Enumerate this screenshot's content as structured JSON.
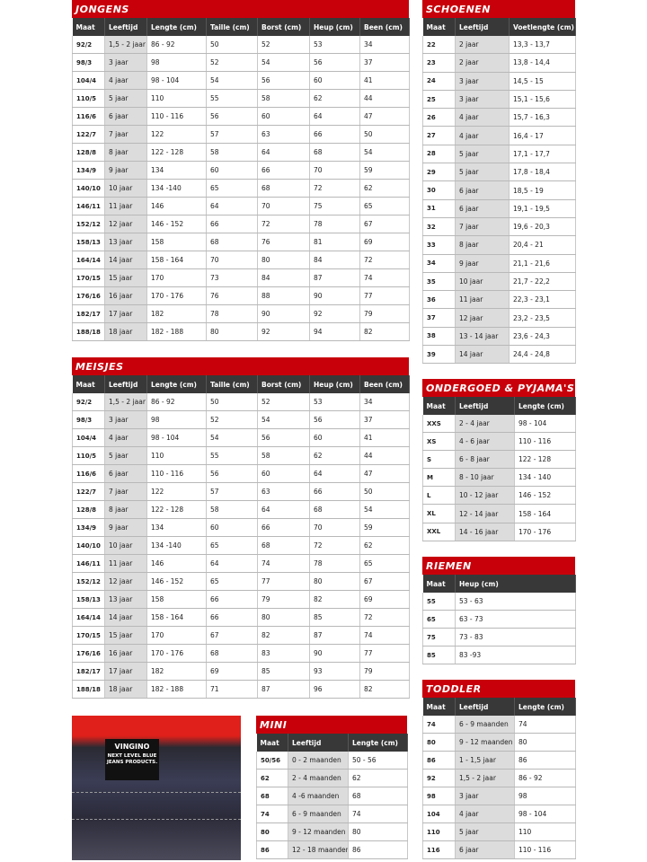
{
  "colors": {
    "header_red": "#c8000a",
    "column_header": "#383838",
    "age_column": "#dcdcdc"
  },
  "tables": {
    "jongens": {
      "title": "JONGENS",
      "columns": [
        "Maat",
        "Leeftijd",
        "Lengte (cm)",
        "Taille (cm)",
        "Borst (cm)",
        "Heup (cm)",
        "Been (cm)"
      ],
      "rows": [
        [
          "92/2",
          "1,5 - 2 jaar",
          "86 - 92",
          "50",
          "52",
          "53",
          "34"
        ],
        [
          "98/3",
          "3 jaar",
          "98",
          "52",
          "54",
          "56",
          "37"
        ],
        [
          "104/4",
          "4 jaar",
          "98 - 104",
          "54",
          "56",
          "60",
          "41"
        ],
        [
          "110/5",
          "5 jaar",
          "110",
          "55",
          "58",
          "62",
          "44"
        ],
        [
          "116/6",
          "6 jaar",
          "110 - 116",
          "56",
          "60",
          "64",
          "47"
        ],
        [
          "122/7",
          "7 jaar",
          "122",
          "57",
          "63",
          "66",
          "50"
        ],
        [
          "128/8",
          "8 jaar",
          "122 - 128",
          "58",
          "64",
          "68",
          "54"
        ],
        [
          "134/9",
          "9 jaar",
          "134",
          "60",
          "66",
          "70",
          "59"
        ],
        [
          "140/10",
          "10 jaar",
          "134 -140",
          "65",
          "68",
          "72",
          "62"
        ],
        [
          "146/11",
          "11 jaar",
          "146",
          "64",
          "70",
          "75",
          "65"
        ],
        [
          "152/12",
          "12 jaar",
          "146 - 152",
          "66",
          "72",
          "78",
          "67"
        ],
        [
          "158/13",
          "13 jaar",
          "158",
          "68",
          "76",
          "81",
          "69"
        ],
        [
          "164/14",
          "14 jaar",
          "158 - 164",
          "70",
          "80",
          "84",
          "72"
        ],
        [
          "170/15",
          "15 jaar",
          "170",
          "73",
          "84",
          "87",
          "74"
        ],
        [
          "176/16",
          "16 jaar",
          "170 - 176",
          "76",
          "88",
          "90",
          "77"
        ],
        [
          "182/17",
          "17 jaar",
          "182",
          "78",
          "90",
          "92",
          "79"
        ],
        [
          "188/18",
          "18 jaar",
          "182 - 188",
          "80",
          "92",
          "94",
          "82"
        ]
      ]
    },
    "meisjes": {
      "title": "MEISJES",
      "columns": [
        "Maat",
        "Leeftijd",
        "Lengte (cm)",
        "Taille (cm)",
        "Borst (cm)",
        "Heup (cm)",
        "Been (cm)"
      ],
      "rows": [
        [
          "92/2",
          "1,5 - 2 jaar",
          "86 - 92",
          "50",
          "52",
          "53",
          "34"
        ],
        [
          "98/3",
          "3 jaar",
          "98",
          "52",
          "54",
          "56",
          "37"
        ],
        [
          "104/4",
          "4 jaar",
          "98 - 104",
          "54",
          "56",
          "60",
          "41"
        ],
        [
          "110/5",
          "5 jaar",
          "110",
          "55",
          "58",
          "62",
          "44"
        ],
        [
          "116/6",
          "6 jaar",
          "110 - 116",
          "56",
          "60",
          "64",
          "47"
        ],
        [
          "122/7",
          "7 jaar",
          "122",
          "57",
          "63",
          "66",
          "50"
        ],
        [
          "128/8",
          "8 jaar",
          "122 - 128",
          "58",
          "64",
          "68",
          "54"
        ],
        [
          "134/9",
          "9 jaar",
          "134",
          "60",
          "66",
          "70",
          "59"
        ],
        [
          "140/10",
          "10 jaar",
          "134 -140",
          "65",
          "68",
          "72",
          "62"
        ],
        [
          "146/11",
          "11 jaar",
          "146",
          "64",
          "74",
          "78",
          "65"
        ],
        [
          "152/12",
          "12 jaar",
          "146 - 152",
          "65",
          "77",
          "80",
          "67"
        ],
        [
          "158/13",
          "13 jaar",
          "158",
          "66",
          "79",
          "82",
          "69"
        ],
        [
          "164/14",
          "14 jaar",
          "158 - 164",
          "66",
          "80",
          "85",
          "72"
        ],
        [
          "170/15",
          "15 jaar",
          "170",
          "67",
          "82",
          "87",
          "74"
        ],
        [
          "176/16",
          "16 jaar",
          "170 - 176",
          "68",
          "83",
          "90",
          "77"
        ],
        [
          "182/17",
          "17 jaar",
          "182",
          "69",
          "85",
          "93",
          "79"
        ],
        [
          "188/18",
          "18 jaar",
          "182 - 188",
          "71",
          "87",
          "96",
          "82"
        ]
      ]
    },
    "schoenen": {
      "title": "SCHOENEN",
      "columns": [
        "Maat",
        "Leeftijd",
        "Voetlengte (cm)"
      ],
      "rows": [
        [
          "22",
          "2 jaar",
          "13,3 - 13,7"
        ],
        [
          "23",
          "2 jaar",
          "13,8 - 14,4"
        ],
        [
          "24",
          "3 jaar",
          "14,5 - 15"
        ],
        [
          "25",
          "3 jaar",
          "15,1 - 15,6"
        ],
        [
          "26",
          "4 jaar",
          "15,7 - 16,3"
        ],
        [
          "27",
          "4 jaar",
          "16,4 - 17"
        ],
        [
          "28",
          "5 jaar",
          "17,1 - 17,7"
        ],
        [
          "29",
          "5 jaar",
          "17,8 - 18,4"
        ],
        [
          "30",
          "6 jaar",
          "18,5 - 19"
        ],
        [
          "31",
          "6 jaar",
          "19,1 - 19,5"
        ],
        [
          "32",
          "7 jaar",
          "19,6 - 20,3"
        ],
        [
          "33",
          "8 jaar",
          "20,4 - 21"
        ],
        [
          "34",
          "9 jaar",
          "21,1 - 21,6"
        ],
        [
          "35",
          "10 jaar",
          "21,7 - 22,2"
        ],
        [
          "36",
          "11 jaar",
          "22,3 - 23,1"
        ],
        [
          "37",
          "12 jaar",
          "23,2 - 23,5"
        ],
        [
          "38",
          "13 - 14 jaar",
          "23,6 - 24,3"
        ],
        [
          "39",
          "14 jaar",
          "24,4 - 24,8"
        ]
      ]
    },
    "ondergoed": {
      "title": "ONDERGOED & PYJAMA'S",
      "columns": [
        "Maat",
        "Leeftijd",
        "Lengte (cm)"
      ],
      "rows": [
        [
          "XXS",
          "2 - 4 jaar",
          "98 - 104"
        ],
        [
          "XS",
          "4 - 6 jaar",
          "110 - 116"
        ],
        [
          "S",
          "6 - 8 jaar",
          "122 - 128"
        ],
        [
          "M",
          "8 - 10 jaar",
          "134 - 140"
        ],
        [
          "L",
          "10 - 12 jaar",
          "146 - 152"
        ],
        [
          "XL",
          "12 - 14 jaar",
          "158 - 164"
        ],
        [
          "XXL",
          "14 - 16 jaar",
          "170 - 176"
        ]
      ]
    },
    "riemen": {
      "title": "RIEMEN",
      "columns": [
        "Maat",
        "Heup (cm)"
      ],
      "rows": [
        [
          "55",
          "53 - 63"
        ],
        [
          "65",
          "63 - 73"
        ],
        [
          "75",
          "73 - 83"
        ],
        [
          "85",
          "83 -93"
        ]
      ]
    },
    "toddler": {
      "title": "TODDLER",
      "columns": [
        "Maat",
        "Leeftijd",
        "Lengte (cm)"
      ],
      "rows": [
        [
          "74",
          "6 - 9 maanden",
          "74"
        ],
        [
          "80",
          "9 - 12 maanden",
          "80"
        ],
        [
          "86",
          "1 - 1,5 jaar",
          "86"
        ],
        [
          "92",
          "1,5 - 2 jaar",
          "86 - 92"
        ],
        [
          "98",
          "3 jaar",
          "98"
        ],
        [
          "104",
          "4 jaar",
          "98 - 104"
        ],
        [
          "110",
          "5 jaar",
          "110"
        ],
        [
          "116",
          "6 jaar",
          "110 - 116"
        ]
      ]
    },
    "mini": {
      "title": "MINI",
      "columns": [
        "Maat",
        "Leeftijd",
        "Lengte (cm)"
      ],
      "rows": [
        [
          "50/56",
          "0 - 2 maanden",
          "50 - 56"
        ],
        [
          "62",
          "2 - 4 maanden",
          "62"
        ],
        [
          "68",
          "4 -6 maanden",
          "68"
        ],
        [
          "74",
          "6 - 9 maanden",
          "74"
        ],
        [
          "80",
          "9 - 12 maanden",
          "80"
        ],
        [
          "86",
          "12 - 18 maanden",
          "86"
        ]
      ]
    }
  },
  "photo": {
    "brand": "VINGINO",
    "tagline": "NEXT LEVEL BLUE JEANS PRODUCTS."
  }
}
